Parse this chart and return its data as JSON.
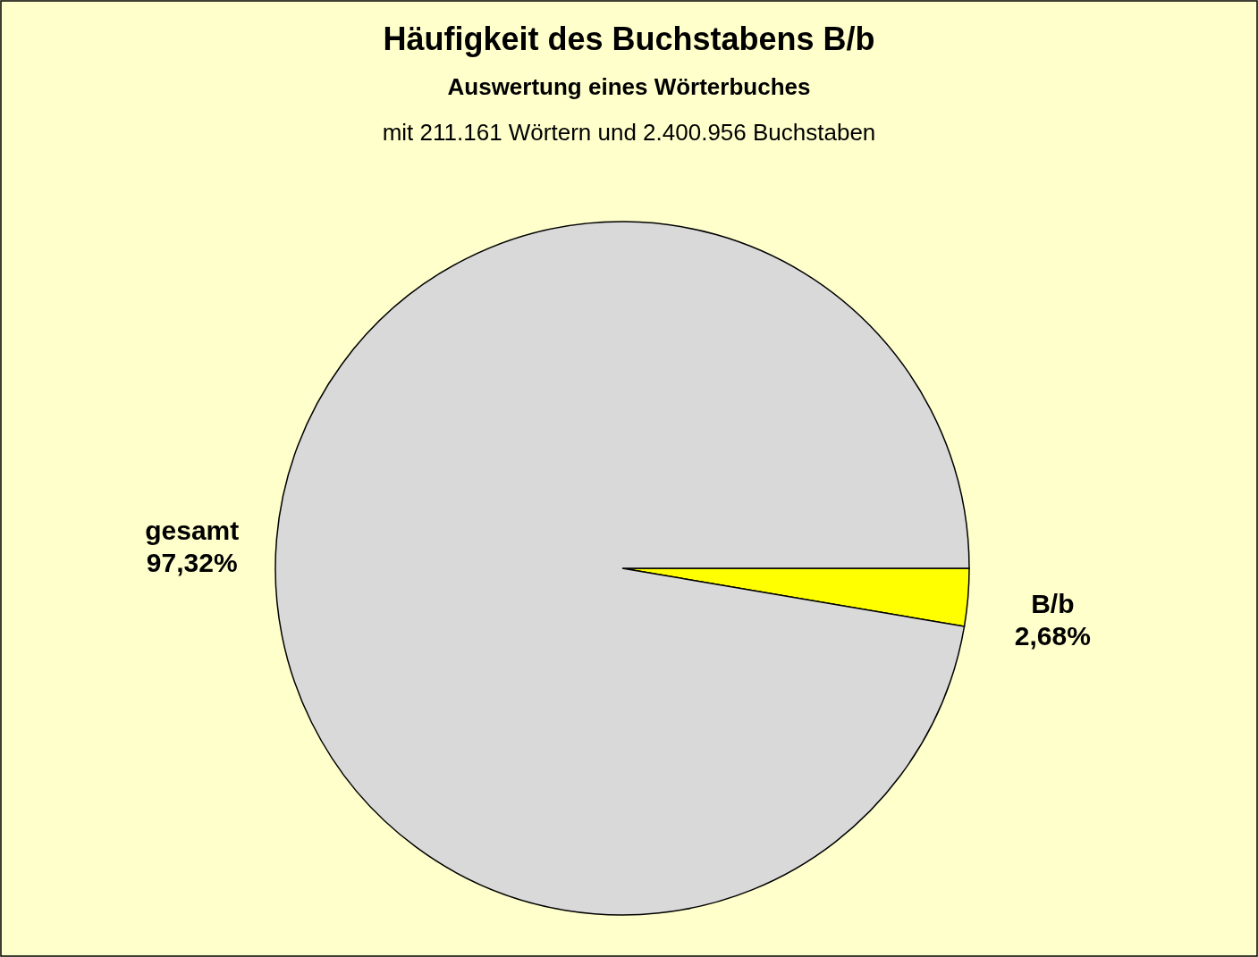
{
  "chart_data": {
    "type": "pie",
    "title": "Häufigkeit des Buchstabens B/b",
    "subtitle": "Auswertung eines Wörterbuches",
    "annotations": [
      "mit 211.161 Wörtern und 2.400.956 Buchstaben"
    ],
    "categories": [
      "B/b",
      "gesamt"
    ],
    "values": [
      2.68,
      97.32
    ],
    "value_labels": [
      "2,68%",
      "97,32%"
    ],
    "colors": [
      "#ffff00",
      "#d9d9d9"
    ]
  }
}
